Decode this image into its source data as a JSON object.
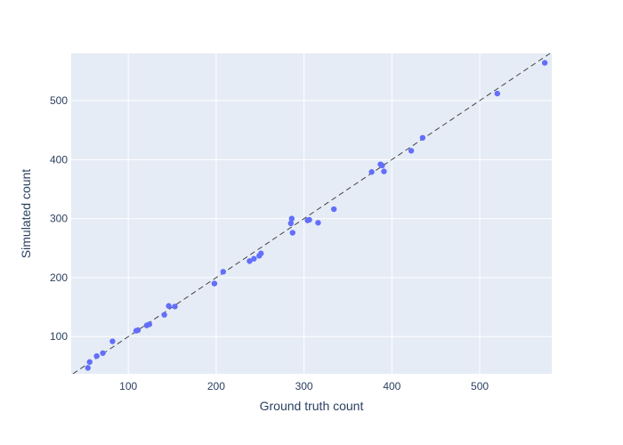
{
  "chart_data": {
    "type": "scatter",
    "title": "",
    "xlabel": "Ground truth count",
    "ylabel": "Simulated count",
    "xlim": [
      35,
      582
    ],
    "ylim": [
      37,
      580
    ],
    "x_ticks": [
      100,
      200,
      300,
      400,
      500
    ],
    "y_ticks": [
      100,
      200,
      300,
      400,
      500
    ],
    "grid": true,
    "reference_line": {
      "type": "y=x",
      "style": "dashed"
    },
    "series": [
      {
        "points": [
          [
            54,
            47
          ],
          [
            56,
            57
          ],
          [
            64,
            67
          ],
          [
            71,
            72
          ],
          [
            82,
            92
          ],
          [
            109,
            110
          ],
          [
            111,
            111
          ],
          [
            121,
            119
          ],
          [
            124,
            121
          ],
          [
            141,
            137
          ],
          [
            146,
            152
          ],
          [
            153,
            151
          ],
          [
            198,
            190
          ],
          [
            208,
            210
          ],
          [
            238,
            228
          ],
          [
            243,
            232
          ],
          [
            249,
            237
          ],
          [
            251,
            241
          ],
          [
            285,
            292
          ],
          [
            286,
            300
          ],
          [
            287,
            276
          ],
          [
            304,
            297
          ],
          [
            306,
            298
          ],
          [
            316,
            293
          ],
          [
            334,
            316
          ],
          [
            377,
            379
          ],
          [
            387,
            392
          ],
          [
            389,
            390
          ],
          [
            391,
            380
          ],
          [
            422,
            415
          ],
          [
            435,
            437
          ],
          [
            520,
            512
          ],
          [
            574,
            564
          ]
        ]
      }
    ],
    "colors": {
      "plot_bg": "#e5ecf6",
      "grid": "#ffffff",
      "marker": "#636efa",
      "reference_line": "#444444",
      "text": "#2a3f5f"
    }
  }
}
